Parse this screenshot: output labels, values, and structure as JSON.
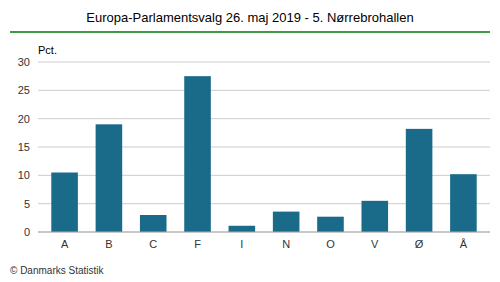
{
  "chart_data": {
    "type": "bar",
    "title": "Europa-Parlamentsvalg 26. maj 2019 - 5. Nørrebrohallen",
    "ylabel": "Pct.",
    "categories": [
      "A",
      "B",
      "C",
      "F",
      "I",
      "N",
      "O",
      "V",
      "Ø",
      "Å"
    ],
    "values": [
      10.5,
      19.0,
      3.0,
      27.5,
      1.1,
      3.6,
      2.7,
      5.5,
      18.2,
      10.2
    ],
    "color": "#1a6b8a",
    "ylim": [
      0,
      30
    ],
    "yticks": [
      0,
      5,
      10,
      15,
      20,
      25,
      30
    ],
    "grid": true,
    "annotations": [
      "© Danmarks Statistik"
    ]
  }
}
